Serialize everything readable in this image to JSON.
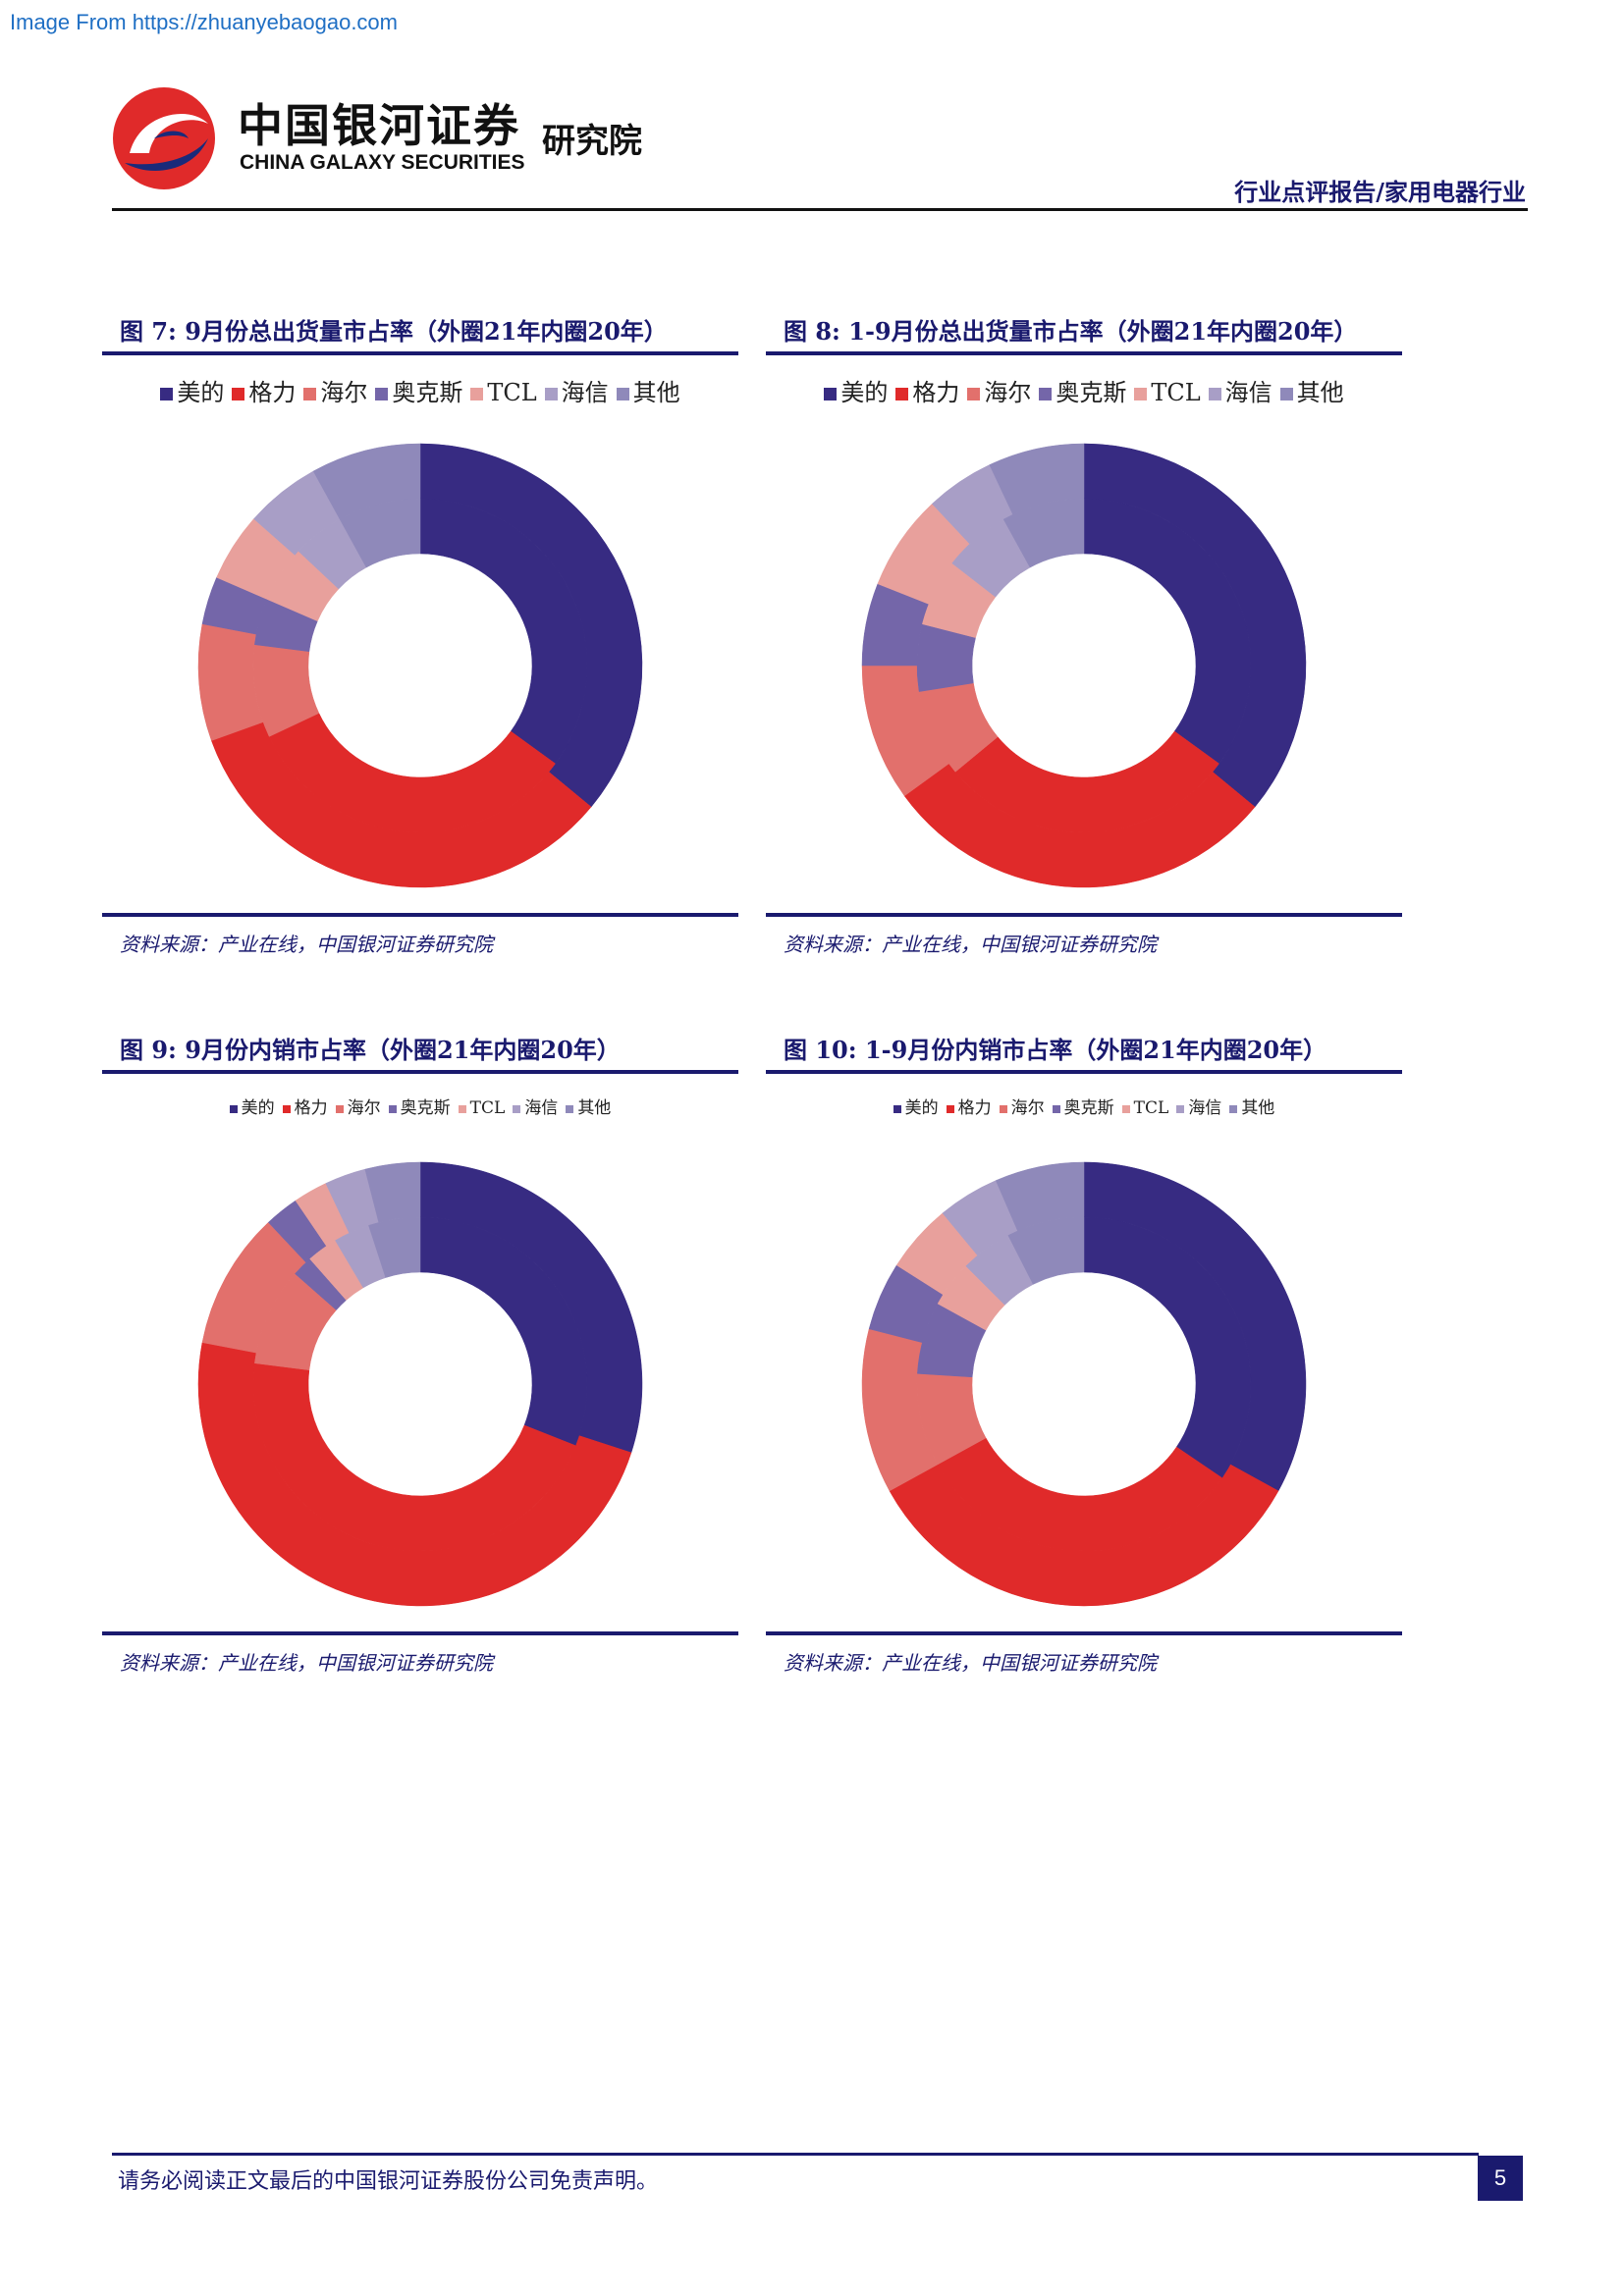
{
  "watermark": "Image From https://zhuanyebaogao.com",
  "header": {
    "logo_cn": "中国银河证券",
    "logo_en": "CHINA GALAXY SECURITIES",
    "logo_inst": "研究院",
    "report_type": "行业点评报告/家用电器行业"
  },
  "colors": {
    "美的": "#372b82",
    "格力": "#e02a2a",
    "海尔": "#e2706c",
    "奥克斯": "#7466a9",
    "TCL": "#e8a09c",
    "海信": "#a89ec6",
    "其他": "#8f89ba",
    "rule": "#1a1a6e"
  },
  "figures": [
    {
      "title": "图 7:  9月份总出货量市占率（外圈21年内圈20年）",
      "source": "资料来源：产业在线，中国银河证券研究院",
      "legend_size": "big"
    },
    {
      "title": "图 8:  1-9月份总出货量市占率（外圈21年内圈20年）",
      "source": "资料来源：产业在线，中国银河证券研究院",
      "legend_size": "big"
    },
    {
      "title": "图 9:  9月份内销市占率（外圈21年内圈20年）",
      "source": "资料来源：产业在线，中国银河证券研究院",
      "legend_size": "small"
    },
    {
      "title": "图 10:  1-9月份内销市占率（外圈21年内圈20年）",
      "source": "资料来源：产业在线，中国银河证券研究院",
      "legend_size": "small"
    }
  ],
  "chart_data": [
    {
      "type": "pie",
      "title": "9月份总出货量市占率（外圈21年内圈20年）",
      "categories": [
        "美的",
        "格力",
        "海尔",
        "奥克斯",
        "TCL",
        "海信",
        "其他"
      ],
      "series": [
        {
          "name": "21年（外圈）",
          "values": [
            36.0,
            33.5,
            8.5,
            3.5,
            5.0,
            5.5,
            8.0
          ]
        },
        {
          "name": "20年（内圈）",
          "values": [
            35.0,
            33.0,
            9.0,
            4.5,
            5.5,
            5.0,
            8.0
          ]
        }
      ]
    },
    {
      "type": "pie",
      "title": "1-9月份总出货量市占率（外圈21年内圈20年）",
      "categories": [
        "美的",
        "格力",
        "海尔",
        "奥克斯",
        "TCL",
        "海信",
        "其他"
      ],
      "series": [
        {
          "name": "21年（外圈）",
          "values": [
            36.0,
            29.0,
            10.0,
            6.0,
            7.0,
            5.0,
            7.0
          ]
        },
        {
          "name": "20年（内圈）",
          "values": [
            35.0,
            29.0,
            8.5,
            6.5,
            6.5,
            6.5,
            8.0
          ]
        }
      ]
    },
    {
      "type": "pie",
      "title": "9月份内销市占率（外圈21年内圈20年）",
      "categories": [
        "美的",
        "格力",
        "海尔",
        "奥克斯",
        "TCL",
        "海信",
        "其他"
      ],
      "series": [
        {
          "name": "21年（外圈）",
          "values": [
            30.0,
            48.0,
            10.0,
            2.5,
            2.5,
            3.0,
            4.0
          ]
        },
        {
          "name": "20年（内圈）",
          "values": [
            31.0,
            46.0,
            9.5,
            2.0,
            3.0,
            3.5,
            5.0
          ]
        }
      ]
    },
    {
      "type": "pie",
      "title": "1-9月份内销市占率（外圈21年内圈20年）",
      "categories": [
        "美的",
        "格力",
        "海尔",
        "奥克斯",
        "TCL",
        "海信",
        "其他"
      ],
      "series": [
        {
          "name": "21年（外圈）",
          "values": [
            33.0,
            34.0,
            12.0,
            5.0,
            5.0,
            4.5,
            6.5
          ]
        },
        {
          "name": "20年（内圈）",
          "values": [
            34.5,
            32.5,
            9.0,
            7.0,
            4.5,
            5.0,
            7.5
          ]
        }
      ]
    }
  ],
  "footer": {
    "disclaimer": "请务必阅读正文最后的中国银河证券股份公司免责声明。",
    "page_number": "5"
  }
}
